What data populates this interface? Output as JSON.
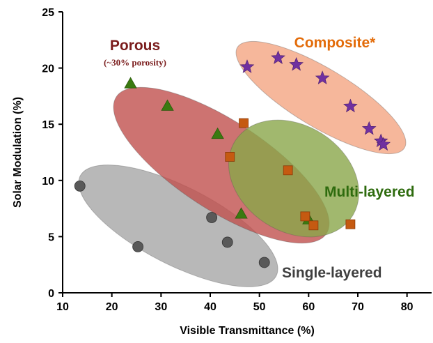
{
  "chart_data": {
    "type": "scatter",
    "xlabel": "Visible Transmittance (%)",
    "ylabel": "Solar Modulation (%)",
    "xlim": [
      10,
      85
    ],
    "ylim": [
      0,
      25
    ],
    "xticks": [
      "10",
      "20",
      "30",
      "40",
      "50",
      "60",
      "70",
      "80"
    ],
    "yticks": [
      "0",
      "5",
      "10",
      "15",
      "20",
      "25"
    ],
    "grid": false,
    "series": [
      {
        "name": "Single-layered",
        "marker": "circle",
        "color": "#595959",
        "region_color": "#a6a6a6",
        "label_color": "#3f3f3f",
        "x": [
          13.5,
          25.3,
          40.3,
          43.5,
          51.0
        ],
        "y": [
          9.5,
          4.1,
          6.7,
          4.5,
          2.7
        ]
      },
      {
        "name": "Porous",
        "subtitle": "(~30% porosity)",
        "marker": "triangle",
        "color": "#3a7a10",
        "region_color": "#c0504d",
        "label_color": "#7a1c1c",
        "x": [
          23.8,
          31.3,
          41.5,
          46.3,
          60.0
        ],
        "y": [
          18.6,
          16.6,
          14.1,
          7.0,
          6.5
        ]
      },
      {
        "name": "Multi-layered",
        "marker": "square",
        "color": "#c55a11",
        "region_color": "#8aa64a",
        "label_color": "#2e6b0e",
        "x": [
          46.8,
          44.0,
          55.8,
          59.3,
          61.0,
          68.5
        ],
        "y": [
          15.1,
          12.1,
          10.9,
          6.8,
          6.0,
          6.1
        ]
      },
      {
        "name": "Composite*",
        "marker": "star",
        "color": "#7030a0",
        "region_color": "#f4a582",
        "label_color": "#e36c0a",
        "x": [
          47.5,
          53.8,
          57.5,
          62.8,
          68.5,
          72.3,
          74.7,
          75.2
        ],
        "y": [
          20.1,
          20.9,
          20.3,
          19.1,
          16.6,
          14.6,
          13.5,
          13.2
        ]
      }
    ]
  }
}
